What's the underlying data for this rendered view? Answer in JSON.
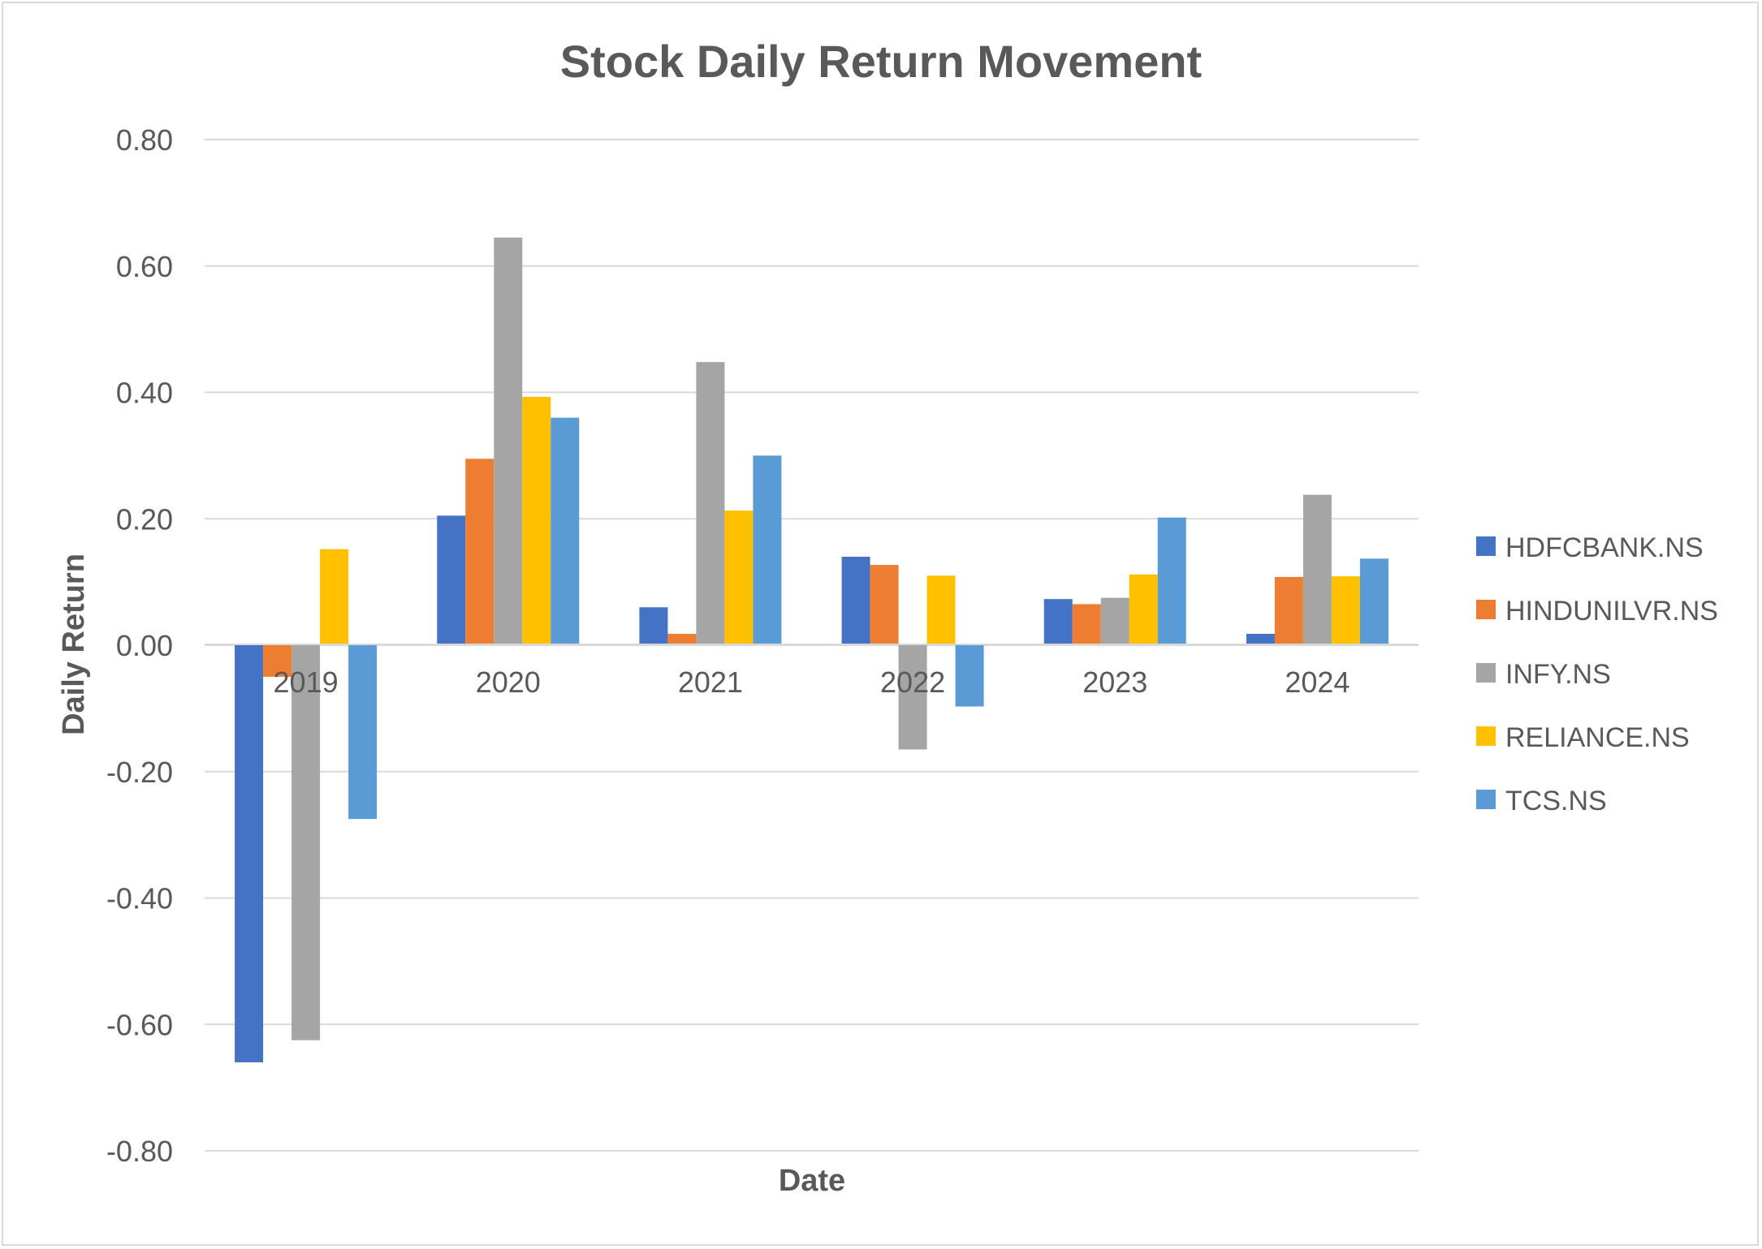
{
  "chart_data": {
    "type": "bar",
    "title": "Stock Daily Return Movement",
    "xlabel": "Date",
    "ylabel": "Daily Return",
    "categories": [
      "2019",
      "2020",
      "2021",
      "2022",
      "2023",
      "2024"
    ],
    "ylim": [
      -0.8,
      0.8
    ],
    "yticks": [
      "0.80",
      "0.60",
      "0.40",
      "0.20",
      "0.00",
      "-0.20",
      "-0.40",
      "-0.60",
      "-0.80"
    ],
    "grid": true,
    "legend_position": "right",
    "series": [
      {
        "name": "HDFCBANK.NS",
        "color": "#4472C4",
        "values": [
          -0.66,
          0.205,
          0.06,
          0.14,
          0.073,
          0.018
        ]
      },
      {
        "name": "HINDUNILVR.NS",
        "color": "#ED7D31",
        "values": [
          -0.05,
          0.295,
          0.018,
          0.127,
          0.065,
          0.108
        ]
      },
      {
        "name": "INFY.NS",
        "color": "#A5A5A5",
        "values": [
          -0.625,
          0.645,
          0.448,
          -0.165,
          0.075,
          0.238
        ]
      },
      {
        "name": "RELIANCE.NS",
        "color": "#FFC000",
        "values": [
          0.152,
          0.393,
          0.213,
          0.11,
          0.112,
          0.109
        ]
      },
      {
        "name": "TCS.NS",
        "color": "#5B9BD5",
        "values": [
          -0.275,
          0.36,
          0.3,
          -0.097,
          0.202,
          0.137
        ]
      }
    ]
  }
}
